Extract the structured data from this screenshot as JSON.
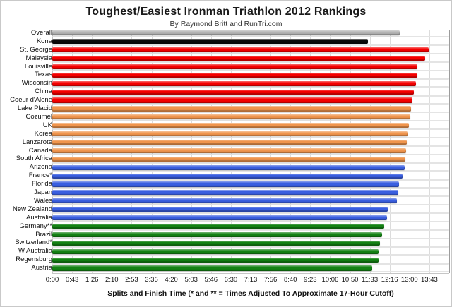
{
  "title": "Toughest/Easiest Ironman Triathlon 2012 Rankings",
  "subtitle": "By Raymond Britt and RunTri.com",
  "xlabel": "Splits and Finish Time (* and ** = Times Adjusted To Approximate 17-Hour Cutoff)",
  "chart_data": {
    "type": "bar",
    "orientation": "horizontal",
    "grid": true,
    "legend": false,
    "x_axis": {
      "tick_labels": [
        "0:00",
        "0:43",
        "1:26",
        "2:10",
        "2:53",
        "3:36",
        "4:20",
        "5:03",
        "5:46",
        "6:30",
        "7:13",
        "7:56",
        "8:40",
        "9:23",
        "10:06",
        "10:50",
        "11:33",
        "12:16",
        "13:00",
        "13:43"
      ],
      "tick_interval_minutes": 43.33,
      "axis_max_minutes": 866.67,
      "num_gridlines": 21
    },
    "palette": {
      "overall": "#b3b3b3",
      "kona": "#0a0a0a",
      "toughest": "#f50000",
      "tough": "#f0954d",
      "easier": "#3a5fe0",
      "easiest": "#148214",
      "gridline": "#dcdcdc",
      "track": "#e4e4e4"
    },
    "bars": [
      {
        "label": "Overall",
        "time": "12:38",
        "minutes": 758,
        "group": "overall"
      },
      {
        "label": "Kona",
        "time": "11:29",
        "minutes": 689,
        "group": "kona"
      },
      {
        "label": "St. George",
        "time": "13:42",
        "minutes": 822,
        "group": "toughest"
      },
      {
        "label": "Malaysia",
        "time": "13:34",
        "minutes": 814,
        "group": "toughest"
      },
      {
        "label": "Louisville",
        "time": "13:18",
        "minutes": 798,
        "group": "toughest"
      },
      {
        "label": "Texas",
        "time": "13:17",
        "minutes": 797,
        "group": "toughest"
      },
      {
        "label": "Wisconsin",
        "time": "13:14",
        "minutes": 794,
        "group": "toughest"
      },
      {
        "label": "China",
        "time": "13:10",
        "minutes": 790,
        "group": "toughest"
      },
      {
        "label": "Coeur d'Alene",
        "time": "13:06",
        "minutes": 786,
        "group": "toughest"
      },
      {
        "label": "Lake Placid",
        "time": "13:04",
        "minutes": 784,
        "group": "tough"
      },
      {
        "label": "Cozumel",
        "time": "13:02",
        "minutes": 782,
        "group": "tough"
      },
      {
        "label": "UK",
        "time": "12:59",
        "minutes": 779,
        "group": "tough"
      },
      {
        "label": "Korea",
        "time": "12:56",
        "minutes": 776,
        "group": "tough"
      },
      {
        "label": "Lanzarote",
        "time": "12:54",
        "minutes": 774,
        "group": "tough"
      },
      {
        "label": "Canada",
        "time": "12:53",
        "minutes": 773,
        "group": "tough"
      },
      {
        "label": "South Africa",
        "time": "12:51",
        "minutes": 771,
        "group": "tough"
      },
      {
        "label": "Arizona",
        "time": "12:49",
        "minutes": 769,
        "group": "easier"
      },
      {
        "label": "France*",
        "time": "12:45",
        "minutes": 765,
        "group": "easier"
      },
      {
        "label": "Florida",
        "time": "12:37",
        "minutes": 757,
        "group": "easier"
      },
      {
        "label": "Japan",
        "time": "12:36",
        "minutes": 756,
        "group": "easier"
      },
      {
        "label": "Wales",
        "time": "12:32",
        "minutes": 752,
        "group": "easier"
      },
      {
        "label": "New Zealand",
        "time": "12:13",
        "minutes": 733,
        "group": "easier"
      },
      {
        "label": "Australia",
        "time": "12:11",
        "minutes": 731,
        "group": "easier"
      },
      {
        "label": "Germany**",
        "time": "12:05",
        "minutes": 725,
        "group": "easiest"
      },
      {
        "label": "Brazil",
        "time": "12:00",
        "minutes": 720,
        "group": "easiest"
      },
      {
        "label": "Switzerland*",
        "time": "11:55",
        "minutes": 715,
        "group": "easiest"
      },
      {
        "label": "W Australia",
        "time": "11:52",
        "minutes": 712,
        "group": "easiest"
      },
      {
        "label": "Regensburg",
        "time": "11:52",
        "minutes": 712,
        "group": "easiest"
      },
      {
        "label": "Austria",
        "time": "11:39",
        "minutes": 699,
        "group": "easiest"
      }
    ]
  }
}
